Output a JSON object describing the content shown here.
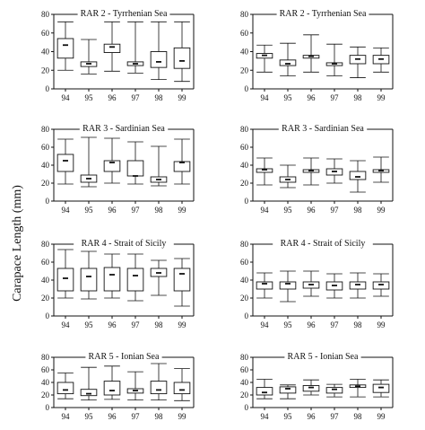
{
  "figure": {
    "ylabel": "Carapace Length (mm)"
  },
  "chart_data": [
    {
      "type": "box",
      "title": "RAR 2 - Tyrrhenian Sea",
      "categories": [
        "94",
        "95",
        "96",
        "97",
        "98",
        "99"
      ],
      "ylim": [
        0,
        80
      ],
      "yticks": [
        "0",
        "20",
        "40",
        "60",
        "80"
      ],
      "boxes": [
        {
          "min": 20,
          "q1": 33,
          "median": 47,
          "q3": 54,
          "max": 72
        },
        {
          "min": 16,
          "q1": 24,
          "median": 27,
          "q3": 29,
          "max": 53
        },
        {
          "min": 19,
          "q1": 39,
          "median": 45,
          "q3": 48,
          "max": 72
        },
        {
          "min": 17,
          "q1": 25,
          "median": 27,
          "q3": 29,
          "max": 72
        },
        {
          "min": 10,
          "q1": 23,
          "median": 29,
          "q3": 40,
          "max": 72
        },
        {
          "min": 8,
          "q1": 22,
          "median": 30,
          "q3": 44,
          "max": 72
        }
      ]
    },
    {
      "type": "box",
      "title": "RAR 2 - Tyrrhenian Sea",
      "categories": [
        "94",
        "95",
        "96",
        "97",
        "98",
        "99"
      ],
      "ylim": [
        0,
        80
      ],
      "yticks": [
        "0",
        "20",
        "40",
        "60",
        "80"
      ],
      "boxes": [
        {
          "min": 18,
          "q1": 33,
          "median": 36,
          "q3": 38,
          "max": 47
        },
        {
          "min": 14,
          "q1": 25,
          "median": 27,
          "q3": 31,
          "max": 49
        },
        {
          "min": 18,
          "q1": 33,
          "median": 35,
          "q3": 36,
          "max": 58
        },
        {
          "min": 14,
          "q1": 25,
          "median": 27,
          "q3": 28,
          "max": 48
        },
        {
          "min": 12,
          "q1": 27,
          "median": 32,
          "q3": 36,
          "max": 45
        },
        {
          "min": 18,
          "q1": 27,
          "median": 32,
          "q3": 36,
          "max": 44
        }
      ]
    },
    {
      "type": "box",
      "title": "RAR 3 - Sardinian Sea",
      "categories": [
        "94",
        "95",
        "96",
        "97",
        "98",
        "99"
      ],
      "ylim": [
        0,
        80
      ],
      "yticks": [
        "0",
        "20",
        "40",
        "60",
        "80"
      ],
      "boxes": [
        {
          "min": 19,
          "q1": 33,
          "median": 45,
          "q3": 52,
          "max": 69
        },
        {
          "min": 16,
          "q1": 21,
          "median": 25,
          "q3": 29,
          "max": 71
        },
        {
          "min": 20,
          "q1": 33,
          "median": 43,
          "q3": 45,
          "max": 70
        },
        {
          "min": 19,
          "q1": 28,
          "median": 28,
          "q3": 45,
          "max": 66
        },
        {
          "min": 17,
          "q1": 21,
          "median": 24,
          "q3": 27,
          "max": 61
        },
        {
          "min": 19,
          "q1": 33,
          "median": 43,
          "q3": 44,
          "max": 69
        }
      ]
    },
    {
      "type": "box",
      "title": "RAR 3 - Sardinian Sea",
      "categories": [
        "94",
        "95",
        "96",
        "97",
        "98",
        "99"
      ],
      "ylim": [
        0,
        80
      ],
      "yticks": [
        "0",
        "20",
        "40",
        "60",
        "80"
      ],
      "boxes": [
        {
          "min": 18,
          "q1": 32,
          "median": 35,
          "q3": 36,
          "max": 48
        },
        {
          "min": 15,
          "q1": 21,
          "median": 24,
          "q3": 27,
          "max": 40
        },
        {
          "min": 18,
          "q1": 32,
          "median": 34,
          "q3": 35,
          "max": 48
        },
        {
          "min": 20,
          "q1": 29,
          "median": 33,
          "q3": 36,
          "max": 47
        },
        {
          "min": 10,
          "q1": 24,
          "median": 27,
          "q3": 33,
          "max": 45
        },
        {
          "min": 21,
          "q1": 32,
          "median": 34,
          "q3": 35,
          "max": 49
        }
      ]
    },
    {
      "type": "box",
      "title": "RAR 4 - Strait of Sicily",
      "categories": [
        "94",
        "95",
        "96",
        "97",
        "98",
        "99"
      ],
      "ylim": [
        0,
        80
      ],
      "yticks": [
        "0",
        "20",
        "40",
        "60",
        "80"
      ],
      "boxes": [
        {
          "min": 20,
          "q1": 28,
          "median": 42,
          "q3": 53,
          "max": 74
        },
        {
          "min": 19,
          "q1": 28,
          "median": 44,
          "q3": 53,
          "max": 72
        },
        {
          "min": 20,
          "q1": 28,
          "median": 46,
          "q3": 54,
          "max": 69
        },
        {
          "min": 17,
          "q1": 28,
          "median": 45,
          "q3": 53,
          "max": 69
        },
        {
          "min": 23,
          "q1": 44,
          "median": 48,
          "q3": 53,
          "max": 62
        },
        {
          "min": 11,
          "q1": 28,
          "median": 47,
          "q3": 53,
          "max": 64
        }
      ]
    },
    {
      "type": "box",
      "title": "RAR 4 - Strait of Sicily",
      "categories": [
        "94",
        "95",
        "96",
        "97",
        "98",
        "99"
      ],
      "ylim": [
        0,
        80
      ],
      "yticks": [
        "0",
        "20",
        "40",
        "60",
        "80"
      ],
      "boxes": [
        {
          "min": 20,
          "q1": 30,
          "median": 36,
          "q3": 38,
          "max": 48
        },
        {
          "min": 16,
          "q1": 30,
          "median": 36,
          "q3": 38,
          "max": 50
        },
        {
          "min": 22,
          "q1": 31,
          "median": 35,
          "q3": 38,
          "max": 50
        },
        {
          "min": 20,
          "q1": 29,
          "median": 34,
          "q3": 38,
          "max": 47
        },
        {
          "min": 20,
          "q1": 30,
          "median": 35,
          "q3": 38,
          "max": 48
        },
        {
          "min": 22,
          "q1": 30,
          "median": 35,
          "q3": 38,
          "max": 47
        }
      ]
    },
    {
      "type": "box",
      "title": "RAR 5 - Ionian Sea",
      "categories": [
        "94",
        "95",
        "96",
        "97",
        "98",
        "99"
      ],
      "ylim": [
        0,
        80
      ],
      "yticks": [
        "0",
        "20",
        "40",
        "60",
        "80"
      ],
      "boxes": [
        {
          "min": 14,
          "q1": 22,
          "median": 28,
          "q3": 40,
          "max": 55
        },
        {
          "min": 12,
          "q1": 19,
          "median": 22,
          "q3": 29,
          "max": 64
        },
        {
          "min": 13,
          "q1": 20,
          "median": 27,
          "q3": 42,
          "max": 66
        },
        {
          "min": 12,
          "q1": 23,
          "median": 27,
          "q3": 30,
          "max": 57
        },
        {
          "min": 12,
          "q1": 22,
          "median": 28,
          "q3": 42,
          "max": 70
        },
        {
          "min": 11,
          "q1": 22,
          "median": 28,
          "q3": 40,
          "max": 62
        }
      ]
    },
    {
      "type": "box",
      "title": "RAR 5 - Ionian Sea",
      "categories": [
        "94",
        "95",
        "96",
        "97",
        "98",
        "99"
      ],
      "ylim": [
        0,
        80
      ],
      "yticks": [
        "0",
        "20",
        "40",
        "60",
        "80"
      ],
      "boxes": [
        {
          "min": 14,
          "q1": 20,
          "median": 24,
          "q3": 32,
          "max": 45
        },
        {
          "min": 14,
          "q1": 23,
          "median": 30,
          "q3": 33,
          "max": 36
        },
        {
          "min": 20,
          "q1": 26,
          "median": 32,
          "q3": 35,
          "max": 44
        },
        {
          "min": 17,
          "q1": 23,
          "median": 29,
          "q3": 32,
          "max": 37
        },
        {
          "min": 17,
          "q1": 32,
          "median": 34,
          "q3": 36,
          "max": 45
        },
        {
          "min": 17,
          "q1": 24,
          "median": 32,
          "q3": 37,
          "max": 44
        }
      ]
    }
  ]
}
